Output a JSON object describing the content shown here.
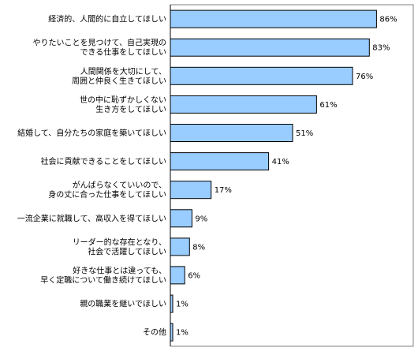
{
  "chart_data": {
    "type": "bar",
    "orientation": "horizontal",
    "categories": [
      [
        "経済的、人間的に自立してほしい"
      ],
      [
        "やりたいことを見つけて、自己実現の",
        "できる仕事をしてほしい"
      ],
      [
        "人間関係を大切にして、",
        "周囲と仲良く生きてほしい"
      ],
      [
        "世の中に恥ずかしくない",
        "生き方をしてほしい"
      ],
      [
        "結婚して、自分たちの家庭を築いてほしい"
      ],
      [
        "社会に貢献できることをしてほしい"
      ],
      [
        "がんばらなくていいので、",
        "身の丈に合った仕事をしてほしい"
      ],
      [
        "一流企業に就職して、高収入を得てほしい"
      ],
      [
        "リーダー的な存在となり、",
        "社会で活躍してほしい"
      ],
      [
        "好きな仕事とは違っても、",
        "早く定職について働き続けてほしい"
      ],
      [
        "親の職業を継いでほしい"
      ],
      [
        "その他"
      ]
    ],
    "values": [
      86,
      83,
      76,
      61,
      51,
      41,
      17,
      9,
      8,
      6,
      1,
      1
    ],
    "value_labels": [
      "86%",
      "83%",
      "76%",
      "61%",
      "51%",
      "41%",
      "17%",
      "9%",
      "8%",
      "6%",
      "1%",
      "1%"
    ],
    "xlim": [
      0,
      100
    ],
    "grid": false,
    "bar_color": "#99ccff",
    "bar_stroke": "#000000"
  }
}
